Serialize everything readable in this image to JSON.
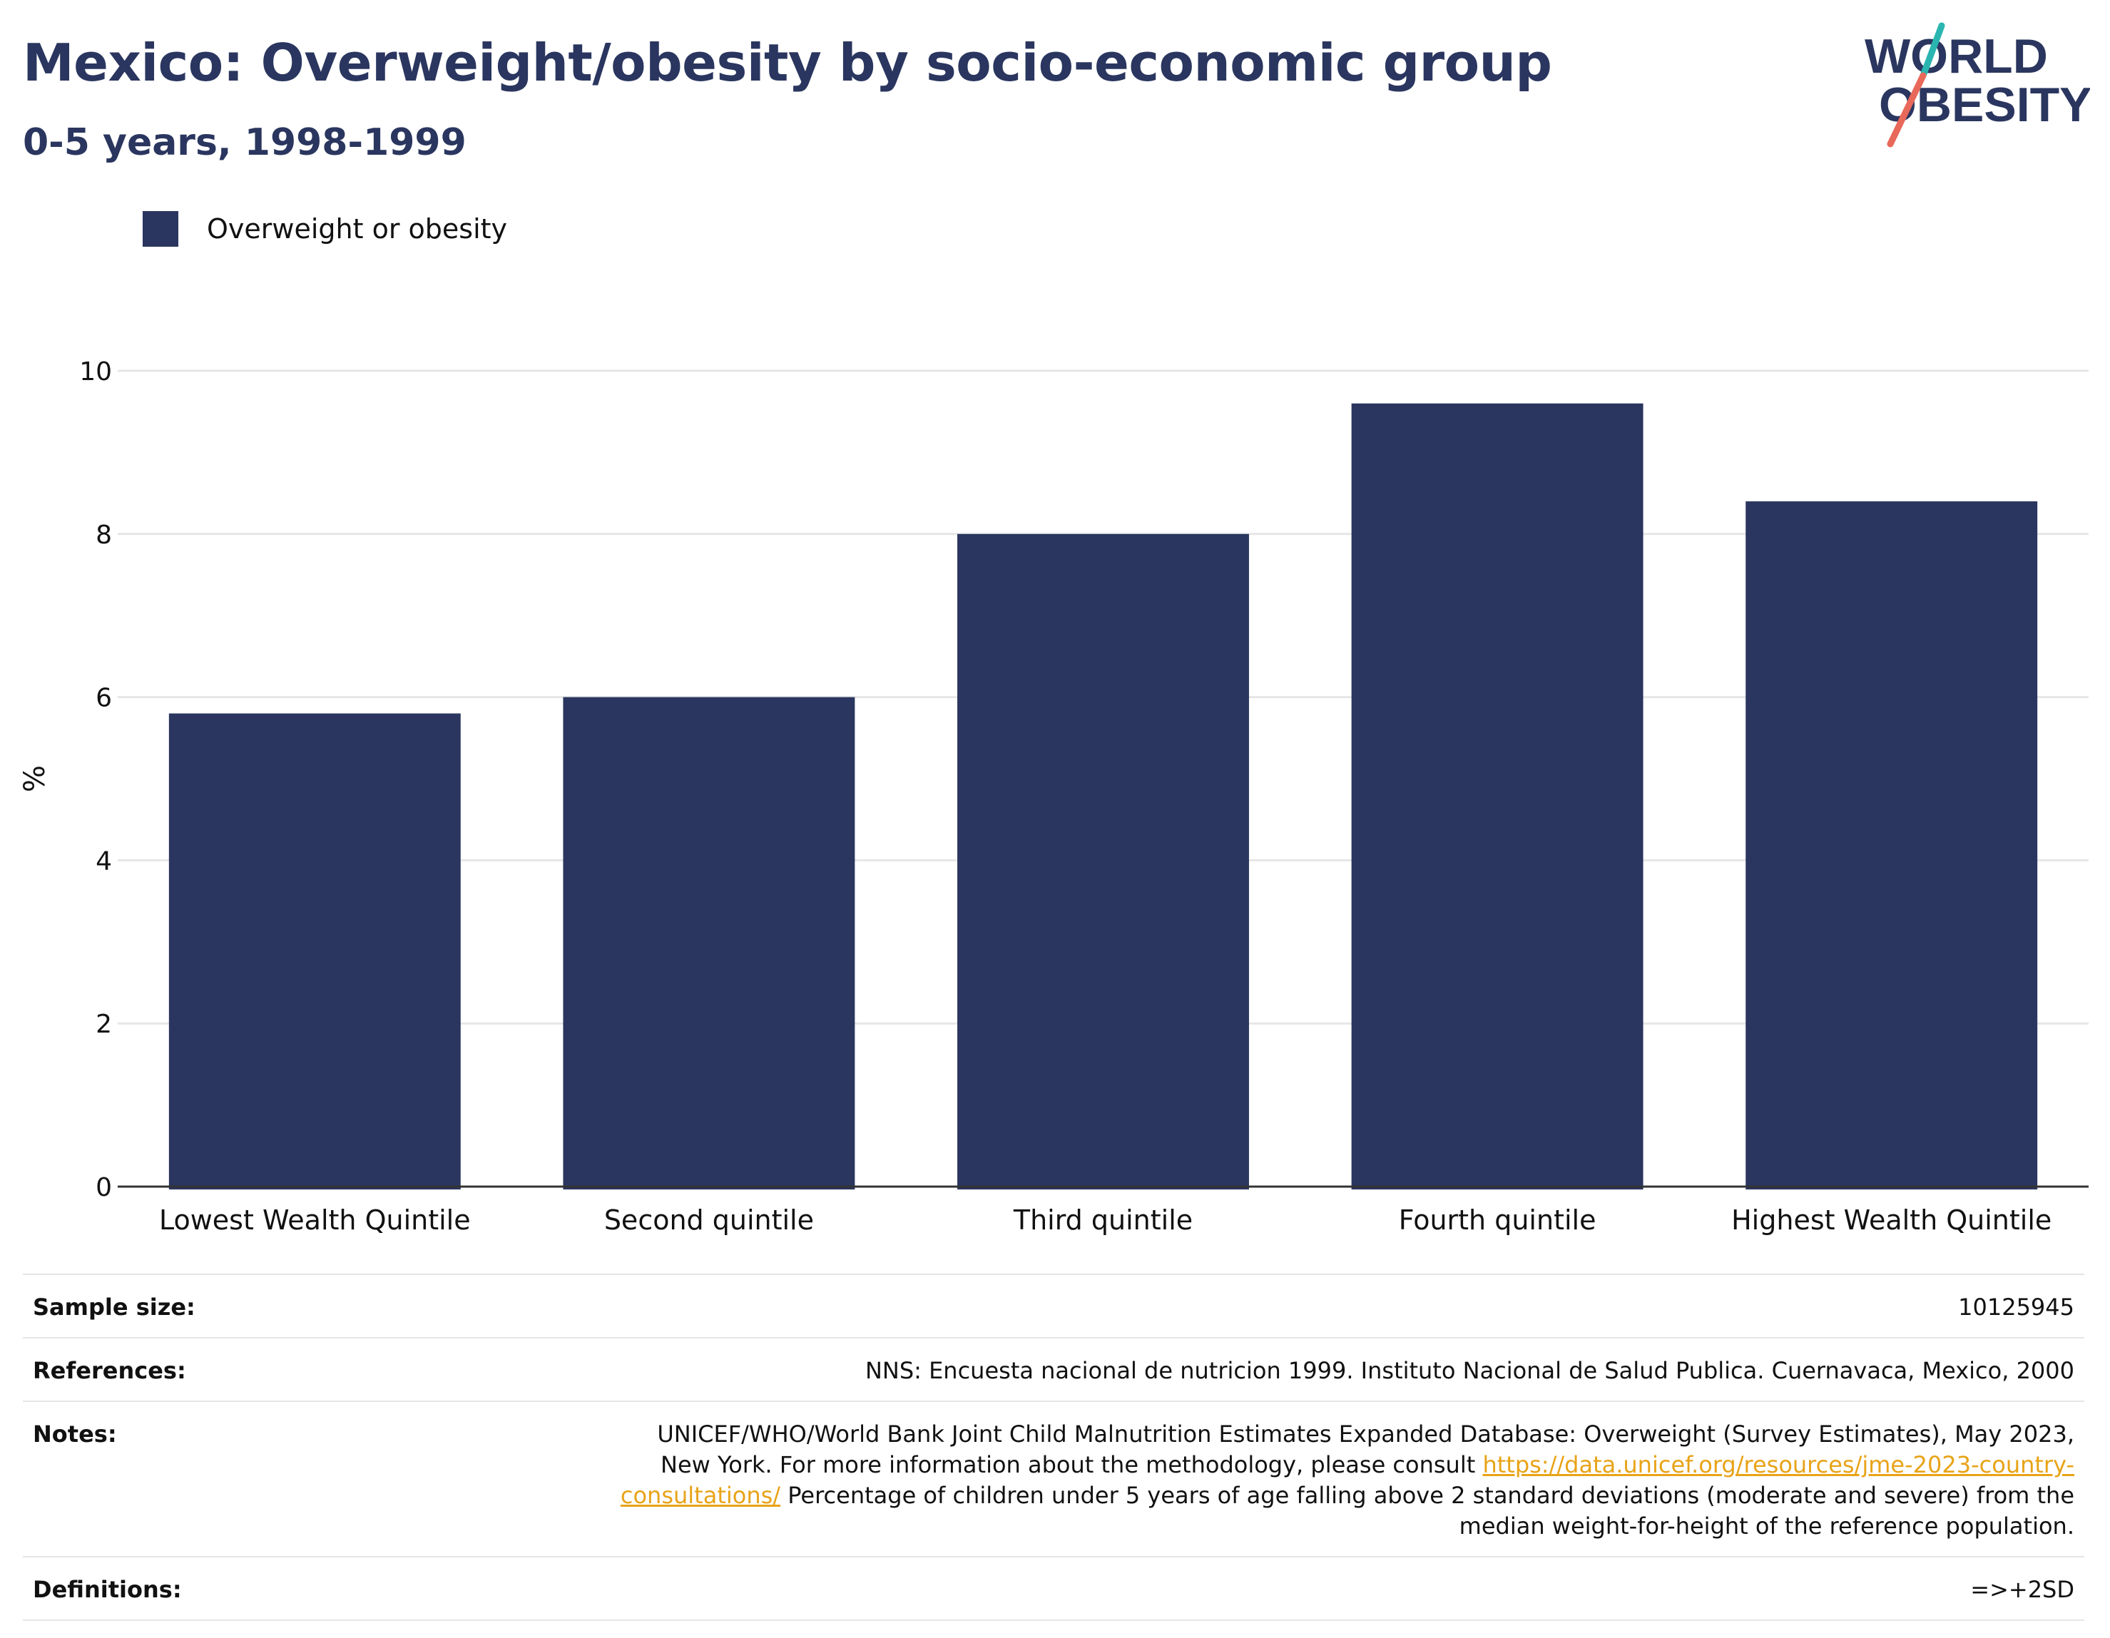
{
  "header": {
    "title": "Mexico: Overweight/obesity by socio-economic group",
    "subtitle": "0-5 years, 1998-1999"
  },
  "logo": {
    "line1": "WORLD",
    "line2": "OBESITY",
    "colors": {
      "text": "#2a365f",
      "slash_top": "#2bb5b0",
      "slash_bottom": "#e8685a"
    }
  },
  "colors": {
    "bar": "#2a365f",
    "grid": "#e6e6e6",
    "axis": "#333333"
  },
  "chart_data": {
    "type": "bar",
    "categories": [
      "Lowest Wealth Quintile",
      "Second quintile",
      "Third quintile",
      "Fourth quintile",
      "Highest Wealth Quintile"
    ],
    "series": [
      {
        "name": "Overweight or obesity",
        "values": [
          5.8,
          6.0,
          8.0,
          9.6,
          8.4
        ]
      }
    ],
    "ylabel": "%",
    "xlabel": "",
    "ylim": [
      0,
      10
    ],
    "yticks": [
      0,
      2,
      4,
      6,
      8,
      10
    ],
    "grid": true,
    "legend_position": "top-left"
  },
  "info": {
    "sample_size": {
      "label": "Sample size:",
      "value": "10125945"
    },
    "references": {
      "label": "References:",
      "value": "NNS: Encuesta nacional de nutricion 1999. Instituto Nacional de Salud Publica. Cuernavaca, Mexico, 2000"
    },
    "notes": {
      "label": "Notes:",
      "text_before": "UNICEF/WHO/World Bank Joint Child Malnutrition Estimates Expanded Database: Overweight (Survey Estimates), May 2023, New York. For more information about the methodology, please consult ",
      "link": "https://data.unicef.org/resources/jme-2023-country-consultations/",
      "text_after": " Percentage of children under 5 years of age falling above 2 standard deviations (moderate and severe) from the median weight-for-height of the reference population."
    },
    "definitions": {
      "label": "Definitions:",
      "value": "=>+2SD"
    }
  }
}
